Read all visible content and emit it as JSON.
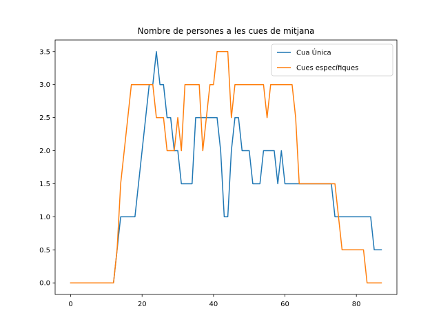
{
  "chart_data": {
    "type": "line",
    "title": "Nombre de persones a les cues de mitjana",
    "xlabel": "",
    "ylabel": "",
    "xlim": [
      -4.35,
      91.35
    ],
    "ylim": [
      -0.175,
      3.675
    ],
    "xticks": [
      0,
      20,
      40,
      60,
      80
    ],
    "xtick_labels": [
      "0",
      "20",
      "40",
      "60",
      "80"
    ],
    "yticks": [
      0.0,
      0.5,
      1.0,
      1.5,
      2.0,
      2.5,
      3.0,
      3.5
    ],
    "ytick_labels": [
      "0.0",
      "0.5",
      "1.0",
      "1.5",
      "2.0",
      "2.5",
      "3.0",
      "3.5"
    ],
    "grid": false,
    "legend_position": "top-right",
    "series": [
      {
        "name": "Cua Única",
        "color": "#1f77b4",
        "x": [
          0,
          1,
          2,
          3,
          4,
          5,
          6,
          7,
          8,
          9,
          10,
          11,
          12,
          13,
          14,
          15,
          16,
          17,
          18,
          19,
          20,
          21,
          22,
          23,
          24,
          25,
          26,
          27,
          28,
          29,
          30,
          31,
          32,
          33,
          34,
          35,
          36,
          37,
          38,
          39,
          40,
          41,
          42,
          43,
          44,
          45,
          46,
          47,
          48,
          49,
          50,
          51,
          52,
          53,
          54,
          55,
          56,
          57,
          58,
          59,
          60,
          61,
          62,
          63,
          64,
          65,
          66,
          67,
          68,
          69,
          70,
          71,
          72,
          73,
          74,
          75,
          76,
          77,
          78,
          79,
          80,
          81,
          82,
          83,
          84,
          85,
          86,
          87
        ],
        "y": [
          0,
          0,
          0,
          0,
          0,
          0,
          0,
          0,
          0,
          0,
          0,
          0,
          0,
          0.5,
          1,
          1,
          1,
          1,
          1,
          1.5,
          2,
          2.5,
          3,
          3,
          3.5,
          3,
          3,
          2.5,
          2.5,
          2,
          2,
          1.5,
          1.5,
          1.5,
          1.5,
          2.5,
          2.5,
          2.5,
          2.5,
          2.5,
          2.5,
          2.5,
          2,
          1,
          1,
          2,
          2.5,
          2.5,
          2,
          2,
          2,
          1.5,
          1.5,
          1.5,
          2,
          2,
          2,
          2,
          1.5,
          2,
          1.5,
          1.5,
          1.5,
          1.5,
          1.5,
          1.5,
          1.5,
          1.5,
          1.5,
          1.5,
          1.5,
          1.5,
          1.5,
          1.5,
          1,
          1,
          1,
          1,
          1,
          1,
          1,
          1,
          1,
          1,
          1,
          0.5,
          0.5,
          0.5
        ]
      },
      {
        "name": "Cues específiques",
        "color": "#ff7f0e",
        "x": [
          0,
          1,
          2,
          3,
          4,
          5,
          6,
          7,
          8,
          9,
          10,
          11,
          12,
          13,
          14,
          15,
          16,
          17,
          18,
          19,
          20,
          21,
          22,
          23,
          24,
          25,
          26,
          27,
          28,
          29,
          30,
          31,
          32,
          33,
          34,
          35,
          36,
          37,
          38,
          39,
          40,
          41,
          42,
          43,
          44,
          45,
          46,
          47,
          48,
          49,
          50,
          51,
          52,
          53,
          54,
          55,
          56,
          57,
          58,
          59,
          60,
          61,
          62,
          63,
          64,
          65,
          66,
          67,
          68,
          69,
          70,
          71,
          72,
          73,
          74,
          75,
          76,
          77,
          78,
          79,
          80,
          81,
          82,
          83,
          84,
          85,
          86,
          87
        ],
        "y": [
          0,
          0,
          0,
          0,
          0,
          0,
          0,
          0,
          0,
          0,
          0,
          0,
          0,
          0.5,
          1.5,
          2,
          2.5,
          3,
          3,
          3,
          3,
          3,
          3,
          3,
          2.5,
          2.5,
          2.5,
          2,
          2,
          2,
          2.5,
          2,
          3,
          3,
          3,
          3,
          3,
          2,
          2.5,
          3,
          3,
          3.5,
          3.5,
          3.5,
          3.5,
          2.5,
          3,
          3,
          3,
          3,
          3,
          3,
          3,
          3,
          3,
          2.5,
          3,
          3,
          3,
          3,
          3,
          3,
          3,
          2.5,
          1.5,
          1.5,
          1.5,
          1.5,
          1.5,
          1.5,
          1.5,
          1.5,
          1.5,
          1.5,
          1.5,
          1,
          0.5,
          0.5,
          0.5,
          0.5,
          0.5,
          0.5,
          0.5,
          0,
          0,
          0,
          0,
          0
        ]
      }
    ]
  }
}
